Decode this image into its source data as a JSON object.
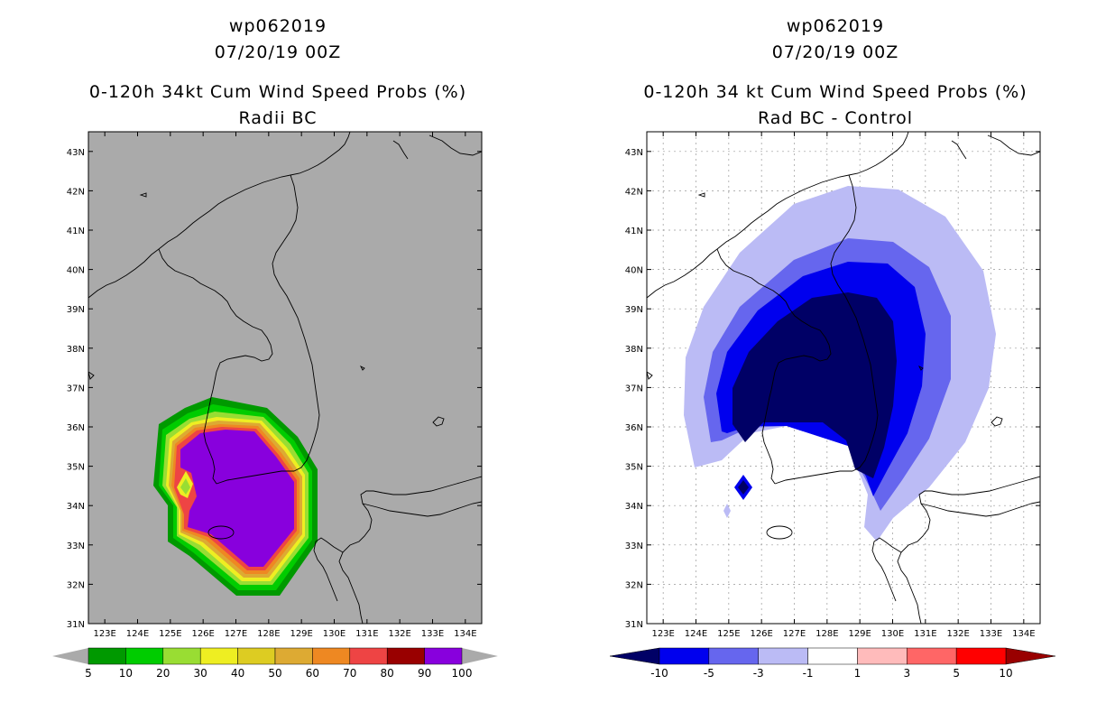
{
  "panels": [
    {
      "storm_id": "wp062019",
      "datetime": "07/20/19 00Z",
      "title": "0-120h 34kt Cum Wind Speed Probs (%)",
      "subtitle": "Radii BC"
    },
    {
      "storm_id": "wp062019",
      "datetime": "07/20/19 00Z",
      "title": "0-120h 34 kt Cum Wind Speed Probs (%)",
      "subtitle": "Rad BC - Control"
    }
  ],
  "chart_data": [
    {
      "type": "heatmap",
      "title": "0-120h 34kt Cum Wind Speed Probs (%)",
      "subtitle": "Radii BC",
      "x_ticks": [
        "123E",
        "124E",
        "125E",
        "126E",
        "127E",
        "128E",
        "129E",
        "130E",
        "131E",
        "132E",
        "133E",
        "134E"
      ],
      "y_ticks": [
        "31N",
        "32N",
        "33N",
        "34N",
        "35N",
        "36N",
        "37N",
        "38N",
        "39N",
        "40N",
        "41N",
        "42N",
        "43N"
      ],
      "xlim": [
        122.5,
        134.5
      ],
      "ylim": [
        31,
        43.5
      ],
      "grid": false,
      "background": "#aaaaaa",
      "legend": {
        "position": "bottom",
        "labels": [
          "5",
          "10",
          "20",
          "30",
          "40",
          "50",
          "60",
          "70",
          "80",
          "90",
          "100"
        ],
        "colors": [
          "#009900",
          "#00cc00",
          "#99dd33",
          "#eeee22",
          "#ddcc22",
          "#ddaa33",
          "#ee8822",
          "#ee4444",
          "#990000",
          "#8800dd"
        ]
      }
    },
    {
      "type": "heatmap",
      "title": "0-120h 34 kt Cum Wind Speed Probs (%)",
      "subtitle": "Rad BC - Control",
      "x_ticks": [
        "123E",
        "124E",
        "125E",
        "126E",
        "127E",
        "128E",
        "129E",
        "130E",
        "131E",
        "132E",
        "133E",
        "134E"
      ],
      "y_ticks": [
        "31N",
        "32N",
        "33N",
        "34N",
        "35N",
        "36N",
        "37N",
        "38N",
        "39N",
        "40N",
        "41N",
        "42N",
        "43N"
      ],
      "xlim": [
        122.5,
        134.5
      ],
      "ylim": [
        31,
        43.5
      ],
      "grid": true,
      "background": "#ffffff",
      "legend": {
        "position": "bottom",
        "labels": [
          "-10",
          "-5",
          "-3",
          "-1",
          "1",
          "3",
          "5",
          "10"
        ],
        "colors": [
          "#000066",
          "#0000ee",
          "#6666ee",
          "#bbbbf5",
          "#ffffff",
          "#ffbbbb",
          "#ff6666",
          "#ff0000",
          "#990000"
        ]
      }
    }
  ]
}
